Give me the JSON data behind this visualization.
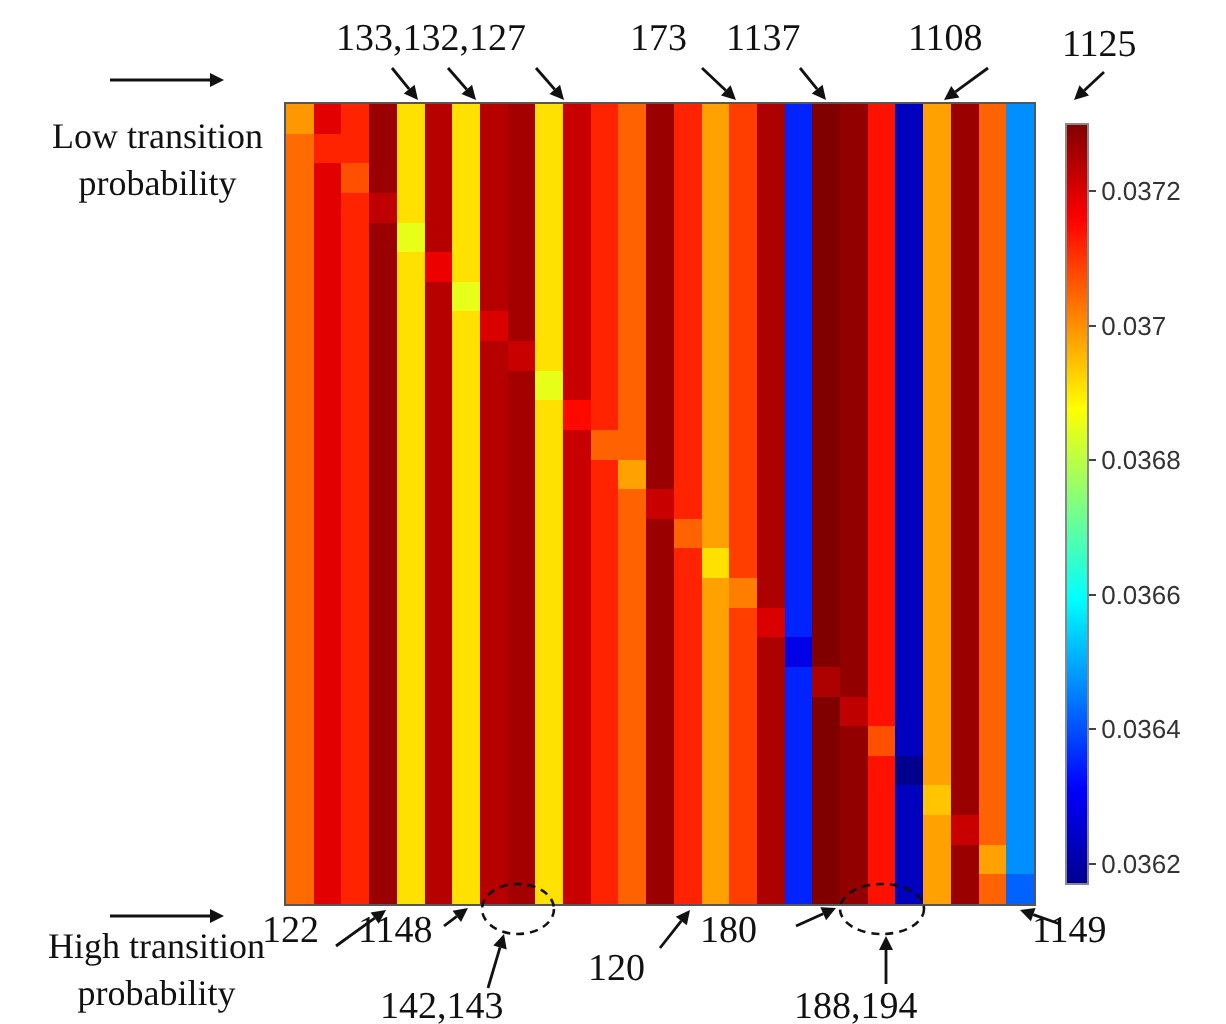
{
  "chart_data": {
    "type": "heatmap",
    "categories": [
      null,
      null,
      null,
      null,
      null,
      null,
      null,
      null,
      null,
      null,
      null,
      null,
      null,
      null,
      null,
      null,
      null,
      null,
      null,
      null,
      null,
      null,
      null,
      null,
      null,
      null,
      null
    ],
    "y_categories": [
      null,
      null,
      null,
      null,
      null,
      null,
      null,
      null,
      null,
      null,
      null,
      null,
      null,
      null,
      null,
      null,
      null,
      null,
      null,
      null,
      null,
      null,
      null,
      null,
      null,
      null,
      null
    ],
    "cells": [
      [
        0.03699,
        0.03719,
        0.03712,
        0.03727,
        0.03691,
        0.03724,
        0.03691,
        0.03724,
        0.03726,
        0.03691,
        0.03722,
        0.03712,
        0.03705,
        0.03727,
        0.03712,
        0.03698,
        0.03709,
        0.03725,
        0.03635,
        0.0373,
        0.03728,
        0.03714,
        0.03623,
        0.03698,
        0.03727,
        0.03705,
        0.03647
      ],
      [
        0.03704,
        0.03712,
        0.03712,
        0.03727,
        0.03691,
        0.03724,
        0.03691,
        0.03724,
        0.03726,
        0.03691,
        0.03722,
        0.03712,
        0.03705,
        0.03727,
        0.03712,
        0.03698,
        0.03709,
        0.03725,
        0.03635,
        0.0373,
        0.03728,
        0.03714,
        0.03623,
        0.03698,
        0.03727,
        0.03705,
        0.03647
      ],
      [
        0.03704,
        0.03719,
        0.03707,
        0.03727,
        0.03691,
        0.03724,
        0.03691,
        0.03724,
        0.03726,
        0.03691,
        0.03722,
        0.03712,
        0.03705,
        0.03727,
        0.03712,
        0.03698,
        0.03709,
        0.03725,
        0.03635,
        0.0373,
        0.03728,
        0.03714,
        0.03623,
        0.03698,
        0.03727,
        0.03705,
        0.03647
      ],
      [
        0.03704,
        0.03719,
        0.03712,
        0.03723,
        0.03691,
        0.03724,
        0.03691,
        0.03724,
        0.03726,
        0.03691,
        0.03722,
        0.03712,
        0.03705,
        0.03727,
        0.03712,
        0.03698,
        0.03709,
        0.03725,
        0.03635,
        0.0373,
        0.03728,
        0.03714,
        0.03623,
        0.03698,
        0.03727,
        0.03705,
        0.03647
      ],
      [
        0.03704,
        0.03719,
        0.03712,
        0.03727,
        0.03685,
        0.03724,
        0.03691,
        0.03724,
        0.03726,
        0.03691,
        0.03722,
        0.03712,
        0.03705,
        0.03727,
        0.03712,
        0.03698,
        0.03709,
        0.03725,
        0.03635,
        0.0373,
        0.03728,
        0.03714,
        0.03623,
        0.03698,
        0.03727,
        0.03705,
        0.03647
      ],
      [
        0.03704,
        0.03719,
        0.03712,
        0.03727,
        0.03691,
        0.03718,
        0.03691,
        0.03724,
        0.03726,
        0.03691,
        0.03722,
        0.03712,
        0.03705,
        0.03727,
        0.03712,
        0.03698,
        0.03709,
        0.03725,
        0.03635,
        0.0373,
        0.03728,
        0.03714,
        0.03623,
        0.03698,
        0.03727,
        0.03705,
        0.03647
      ],
      [
        0.03704,
        0.03719,
        0.03712,
        0.03727,
        0.03691,
        0.03724,
        0.03685,
        0.03724,
        0.03726,
        0.03691,
        0.03722,
        0.03712,
        0.03705,
        0.03727,
        0.03712,
        0.03698,
        0.03709,
        0.03725,
        0.03635,
        0.0373,
        0.03728,
        0.03714,
        0.03623,
        0.03698,
        0.03727,
        0.03705,
        0.03647
      ],
      [
        0.03704,
        0.03719,
        0.03712,
        0.03727,
        0.03691,
        0.03724,
        0.03691,
        0.0372,
        0.03726,
        0.03691,
        0.03722,
        0.03712,
        0.03705,
        0.03727,
        0.03712,
        0.03698,
        0.03709,
        0.03725,
        0.03635,
        0.0373,
        0.03728,
        0.03714,
        0.03623,
        0.03698,
        0.03727,
        0.03705,
        0.03647
      ],
      [
        0.03704,
        0.03719,
        0.03712,
        0.03727,
        0.03691,
        0.03724,
        0.03691,
        0.03724,
        0.03722,
        0.03691,
        0.03722,
        0.03712,
        0.03705,
        0.03727,
        0.03712,
        0.03698,
        0.03709,
        0.03725,
        0.03635,
        0.0373,
        0.03728,
        0.03714,
        0.03623,
        0.03698,
        0.03727,
        0.03705,
        0.03647
      ],
      [
        0.03704,
        0.03719,
        0.03712,
        0.03727,
        0.03691,
        0.03724,
        0.03691,
        0.03724,
        0.03726,
        0.03685,
        0.03722,
        0.03712,
        0.03705,
        0.03727,
        0.03712,
        0.03698,
        0.03709,
        0.03725,
        0.03635,
        0.0373,
        0.03728,
        0.03714,
        0.03623,
        0.03698,
        0.03727,
        0.03705,
        0.03647
      ],
      [
        0.03704,
        0.03719,
        0.03712,
        0.03727,
        0.03691,
        0.03724,
        0.03691,
        0.03724,
        0.03726,
        0.03691,
        0.03715,
        0.03712,
        0.03705,
        0.03727,
        0.03712,
        0.03698,
        0.03709,
        0.03725,
        0.03635,
        0.0373,
        0.03728,
        0.03714,
        0.03623,
        0.03698,
        0.03727,
        0.03705,
        0.03647
      ],
      [
        0.03704,
        0.03719,
        0.03712,
        0.03727,
        0.03691,
        0.03724,
        0.03691,
        0.03724,
        0.03726,
        0.03691,
        0.03722,
        0.03705,
        0.03705,
        0.03727,
        0.03712,
        0.03698,
        0.03709,
        0.03725,
        0.03635,
        0.0373,
        0.03728,
        0.03714,
        0.03623,
        0.03698,
        0.03727,
        0.03705,
        0.03647
      ],
      [
        0.03704,
        0.03719,
        0.03712,
        0.03727,
        0.03691,
        0.03724,
        0.03691,
        0.03724,
        0.03726,
        0.03691,
        0.03722,
        0.03712,
        0.03698,
        0.03727,
        0.03712,
        0.03698,
        0.03709,
        0.03725,
        0.03635,
        0.0373,
        0.03728,
        0.03714,
        0.03623,
        0.03698,
        0.03727,
        0.03705,
        0.03647
      ],
      [
        0.03704,
        0.03719,
        0.03712,
        0.03727,
        0.03691,
        0.03724,
        0.03691,
        0.03724,
        0.03726,
        0.03691,
        0.03722,
        0.03712,
        0.03705,
        0.03722,
        0.03712,
        0.03698,
        0.03709,
        0.03725,
        0.03635,
        0.0373,
        0.03728,
        0.03714,
        0.03623,
        0.03698,
        0.03727,
        0.03705,
        0.03647
      ],
      [
        0.03704,
        0.03719,
        0.03712,
        0.03727,
        0.03691,
        0.03724,
        0.03691,
        0.03724,
        0.03726,
        0.03691,
        0.03722,
        0.03712,
        0.03705,
        0.03727,
        0.03705,
        0.03698,
        0.03709,
        0.03725,
        0.03635,
        0.0373,
        0.03728,
        0.03714,
        0.03623,
        0.03698,
        0.03727,
        0.03705,
        0.03647
      ],
      [
        0.03704,
        0.03719,
        0.03712,
        0.03727,
        0.03691,
        0.03724,
        0.03691,
        0.03724,
        0.03726,
        0.03691,
        0.03722,
        0.03712,
        0.03705,
        0.03727,
        0.03712,
        0.03691,
        0.03709,
        0.03725,
        0.03635,
        0.0373,
        0.03728,
        0.03714,
        0.03623,
        0.03698,
        0.03727,
        0.03705,
        0.03647
      ],
      [
        0.03704,
        0.03719,
        0.03712,
        0.03727,
        0.03691,
        0.03724,
        0.03691,
        0.03724,
        0.03726,
        0.03691,
        0.03722,
        0.03712,
        0.03705,
        0.03727,
        0.03712,
        0.03698,
        0.03702,
        0.03725,
        0.03635,
        0.0373,
        0.03728,
        0.03714,
        0.03623,
        0.03698,
        0.03727,
        0.03705,
        0.03647
      ],
      [
        0.03704,
        0.03719,
        0.03712,
        0.03727,
        0.03691,
        0.03724,
        0.03691,
        0.03724,
        0.03726,
        0.03691,
        0.03722,
        0.03712,
        0.03705,
        0.03727,
        0.03712,
        0.03698,
        0.03709,
        0.0372,
        0.03635,
        0.0373,
        0.03728,
        0.03714,
        0.03623,
        0.03698,
        0.03727,
        0.03705,
        0.03647
      ],
      [
        0.03704,
        0.03719,
        0.03712,
        0.03727,
        0.03691,
        0.03724,
        0.03691,
        0.03724,
        0.03726,
        0.03691,
        0.03722,
        0.03712,
        0.03705,
        0.03727,
        0.03712,
        0.03698,
        0.03709,
        0.03725,
        0.03628,
        0.0373,
        0.03728,
        0.03714,
        0.03623,
        0.03698,
        0.03727,
        0.03705,
        0.03647
      ],
      [
        0.03704,
        0.03719,
        0.03712,
        0.03727,
        0.03691,
        0.03724,
        0.03691,
        0.03724,
        0.03726,
        0.03691,
        0.03722,
        0.03712,
        0.03705,
        0.03727,
        0.03712,
        0.03698,
        0.03709,
        0.03725,
        0.03635,
        0.03725,
        0.03728,
        0.03714,
        0.03623,
        0.03698,
        0.03727,
        0.03705,
        0.03647
      ],
      [
        0.03704,
        0.03719,
        0.03712,
        0.03727,
        0.03691,
        0.03724,
        0.03691,
        0.03724,
        0.03726,
        0.03691,
        0.03722,
        0.03712,
        0.03705,
        0.03727,
        0.03712,
        0.03698,
        0.03709,
        0.03725,
        0.03635,
        0.0373,
        0.03723,
        0.03714,
        0.03623,
        0.03698,
        0.03727,
        0.03705,
        0.03647
      ],
      [
        0.03704,
        0.03719,
        0.03712,
        0.03727,
        0.03691,
        0.03724,
        0.03691,
        0.03724,
        0.03726,
        0.03691,
        0.03722,
        0.03712,
        0.03705,
        0.03727,
        0.03712,
        0.03698,
        0.03709,
        0.03725,
        0.03635,
        0.0373,
        0.03728,
        0.03707,
        0.03623,
        0.03698,
        0.03727,
        0.03705,
        0.03647
      ],
      [
        0.03704,
        0.03719,
        0.03712,
        0.03727,
        0.03691,
        0.03724,
        0.03691,
        0.03724,
        0.03726,
        0.03691,
        0.03722,
        0.03712,
        0.03705,
        0.03727,
        0.03712,
        0.03698,
        0.03709,
        0.03725,
        0.03635,
        0.0373,
        0.03728,
        0.03714,
        0.03617,
        0.03698,
        0.03727,
        0.03705,
        0.03647
      ],
      [
        0.03704,
        0.03719,
        0.03712,
        0.03727,
        0.03691,
        0.03724,
        0.03691,
        0.03724,
        0.03726,
        0.03691,
        0.03722,
        0.03712,
        0.03705,
        0.03727,
        0.03712,
        0.03698,
        0.03709,
        0.03725,
        0.03635,
        0.0373,
        0.03728,
        0.03714,
        0.03623,
        0.03694,
        0.03727,
        0.03705,
        0.03647
      ],
      [
        0.03704,
        0.03719,
        0.03712,
        0.03727,
        0.03691,
        0.03724,
        0.03691,
        0.03724,
        0.03726,
        0.03691,
        0.03722,
        0.03712,
        0.03705,
        0.03727,
        0.03712,
        0.03698,
        0.03709,
        0.03725,
        0.03635,
        0.0373,
        0.03728,
        0.03714,
        0.03623,
        0.03698,
        0.03722,
        0.03705,
        0.03647
      ],
      [
        0.03704,
        0.03719,
        0.03712,
        0.03727,
        0.03691,
        0.03724,
        0.03691,
        0.03724,
        0.03726,
        0.03691,
        0.03722,
        0.03712,
        0.03705,
        0.03727,
        0.03712,
        0.03698,
        0.03709,
        0.03725,
        0.03635,
        0.0373,
        0.03728,
        0.03714,
        0.03623,
        0.03698,
        0.03727,
        0.03698,
        0.03647
      ],
      [
        0.03704,
        0.03719,
        0.03712,
        0.03727,
        0.03691,
        0.03724,
        0.03691,
        0.03724,
        0.03726,
        0.03691,
        0.03722,
        0.03712,
        0.03705,
        0.03727,
        0.03712,
        0.03698,
        0.03709,
        0.03725,
        0.03635,
        0.0373,
        0.03728,
        0.03714,
        0.03623,
        0.03698,
        0.03727,
        0.03705,
        0.03642
      ]
    ],
    "clim": [
      0.03617,
      0.0373
    ],
    "cticks": [
      0.0362,
      0.0364,
      0.0366,
      0.0368,
      0.037,
      0.0372
    ],
    "annotations": [
      "Low transition probability",
      "High transition probability",
      "133,132,127",
      "173",
      "1137",
      "1108",
      "1125",
      "122",
      "1148",
      "142,143",
      "120",
      "180",
      "188,194",
      "1149"
    ]
  }
}
